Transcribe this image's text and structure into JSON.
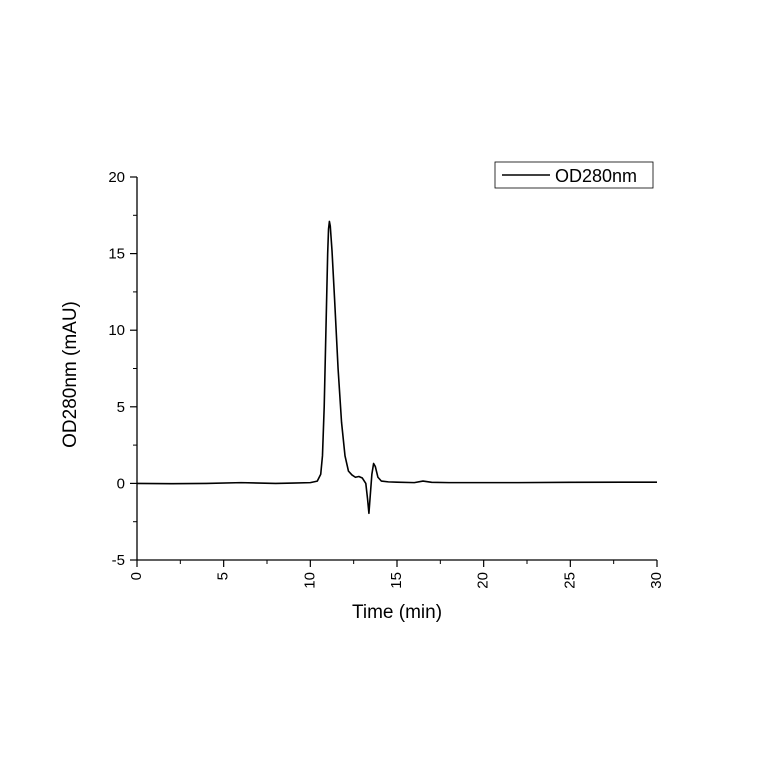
{
  "chart_data": {
    "type": "line",
    "xlabel": "Time (min)",
    "ylabel": "OD280nm (mAU)",
    "xlim": [
      0,
      30
    ],
    "ylim": [
      -5,
      20
    ],
    "xticks": [
      0,
      5,
      10,
      15,
      20,
      25,
      30
    ],
    "yticks": [
      -5,
      0,
      5,
      10,
      15,
      20
    ],
    "grid": false,
    "legend_position": "top-right",
    "series": [
      {
        "name": "OD280nm",
        "color": "#000000",
        "points": [
          [
            0,
            0.0
          ],
          [
            2,
            -0.02
          ],
          [
            4,
            0.0
          ],
          [
            6,
            0.05
          ],
          [
            8,
            0.0
          ],
          [
            9,
            0.02
          ],
          [
            10,
            0.05
          ],
          [
            10.4,
            0.15
          ],
          [
            10.6,
            0.6
          ],
          [
            10.7,
            1.8
          ],
          [
            10.8,
            5.0
          ],
          [
            10.9,
            10.0
          ],
          [
            11.0,
            15.0
          ],
          [
            11.05,
            16.6
          ],
          [
            11.1,
            17.1
          ],
          [
            11.15,
            16.8
          ],
          [
            11.25,
            15.2
          ],
          [
            11.4,
            12.0
          ],
          [
            11.6,
            7.5
          ],
          [
            11.8,
            4.0
          ],
          [
            12.0,
            1.8
          ],
          [
            12.2,
            0.8
          ],
          [
            12.4,
            0.55
          ],
          [
            12.6,
            0.4
          ],
          [
            12.8,
            0.45
          ],
          [
            13.0,
            0.35
          ],
          [
            13.2,
            0.0
          ],
          [
            13.3,
            -1.0
          ],
          [
            13.38,
            -1.95
          ],
          [
            13.45,
            -0.9
          ],
          [
            13.55,
            0.6
          ],
          [
            13.65,
            1.3
          ],
          [
            13.75,
            1.1
          ],
          [
            13.9,
            0.4
          ],
          [
            14.1,
            0.15
          ],
          [
            14.5,
            0.1
          ],
          [
            15,
            0.08
          ],
          [
            16,
            0.05
          ],
          [
            16.5,
            0.15
          ],
          [
            17,
            0.07
          ],
          [
            18,
            0.05
          ],
          [
            20,
            0.05
          ],
          [
            22,
            0.05
          ],
          [
            25,
            0.07
          ],
          [
            28,
            0.08
          ],
          [
            30,
            0.08
          ]
        ]
      }
    ]
  }
}
